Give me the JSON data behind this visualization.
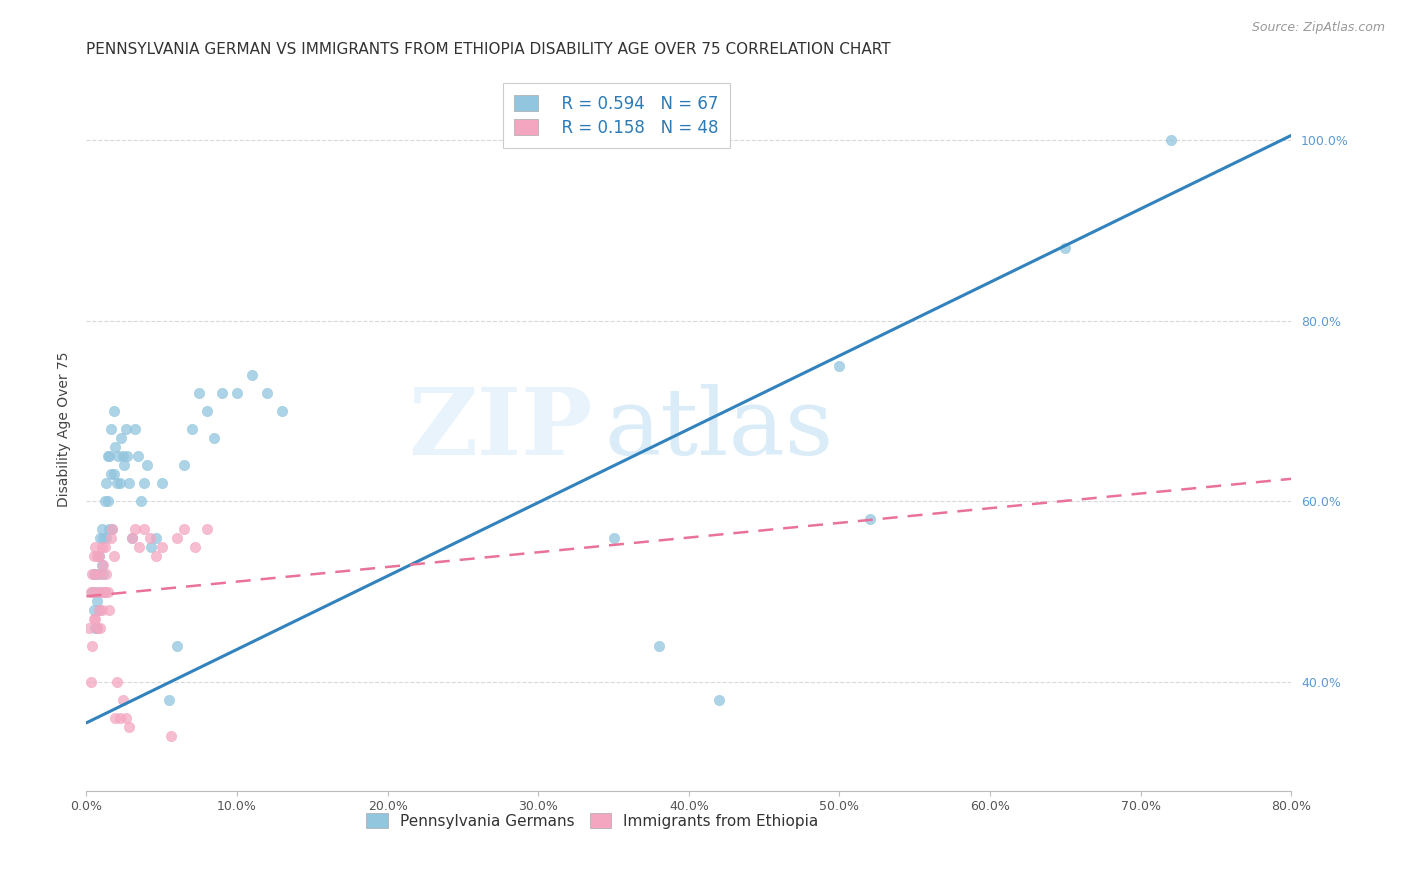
{
  "title": "PENNSYLVANIA GERMAN VS IMMIGRANTS FROM ETHIOPIA DISABILITY AGE OVER 75 CORRELATION CHART",
  "source": "Source: ZipAtlas.com",
  "ylabel": "Disability Age Over 75",
  "legend_label_1": "Pennsylvania Germans",
  "legend_label_2": "Immigrants from Ethiopia",
  "r1": 0.594,
  "n1": 67,
  "r2": 0.158,
  "n2": 48,
  "color1": "#92c5de",
  "color2": "#f4a6c0",
  "line1_color": "#3182bd",
  "line2_color": "#e8729a",
  "xmin": 0.0,
  "xmax": 0.8,
  "ymin": 0.28,
  "ymax": 1.08,
  "watermark_zip": "ZIP",
  "watermark_atlas": "atlas",
  "bg_color": "#ffffff",
  "grid_color": "#d0d0d0",
  "scatter1_x": [
    0.004,
    0.005,
    0.005,
    0.006,
    0.006,
    0.007,
    0.007,
    0.007,
    0.008,
    0.008,
    0.009,
    0.009,
    0.01,
    0.01,
    0.011,
    0.011,
    0.012,
    0.012,
    0.013,
    0.013,
    0.014,
    0.014,
    0.015,
    0.015,
    0.016,
    0.016,
    0.017,
    0.018,
    0.018,
    0.019,
    0.02,
    0.021,
    0.022,
    0.023,
    0.024,
    0.025,
    0.026,
    0.027,
    0.028,
    0.03,
    0.032,
    0.034,
    0.036,
    0.038,
    0.04,
    0.043,
    0.046,
    0.05,
    0.055,
    0.06,
    0.065,
    0.07,
    0.075,
    0.08,
    0.085,
    0.09,
    0.1,
    0.11,
    0.12,
    0.13,
    0.35,
    0.38,
    0.42,
    0.5,
    0.52,
    0.65,
    0.72
  ],
  "scatter1_y": [
    0.5,
    0.52,
    0.48,
    0.5,
    0.46,
    0.49,
    0.52,
    0.46,
    0.48,
    0.54,
    0.56,
    0.5,
    0.53,
    0.57,
    0.52,
    0.56,
    0.5,
    0.6,
    0.62,
    0.56,
    0.6,
    0.65,
    0.57,
    0.65,
    0.63,
    0.68,
    0.57,
    0.7,
    0.63,
    0.66,
    0.62,
    0.65,
    0.62,
    0.67,
    0.65,
    0.64,
    0.68,
    0.65,
    0.62,
    0.56,
    0.68,
    0.65,
    0.6,
    0.62,
    0.64,
    0.55,
    0.56,
    0.62,
    0.38,
    0.44,
    0.64,
    0.68,
    0.72,
    0.7,
    0.67,
    0.72,
    0.72,
    0.74,
    0.72,
    0.7,
    0.56,
    0.44,
    0.38,
    0.75,
    0.58,
    0.88,
    1.0
  ],
  "scatter2_x": [
    0.002,
    0.003,
    0.003,
    0.004,
    0.004,
    0.005,
    0.005,
    0.005,
    0.006,
    0.006,
    0.006,
    0.007,
    0.007,
    0.008,
    0.008,
    0.008,
    0.009,
    0.009,
    0.01,
    0.01,
    0.011,
    0.011,
    0.012,
    0.012,
    0.013,
    0.014,
    0.015,
    0.016,
    0.017,
    0.018,
    0.019,
    0.02,
    0.022,
    0.024,
    0.026,
    0.028,
    0.03,
    0.032,
    0.035,
    0.038,
    0.042,
    0.046,
    0.05,
    0.056,
    0.06,
    0.065,
    0.072,
    0.08
  ],
  "scatter2_y": [
    0.46,
    0.4,
    0.5,
    0.44,
    0.52,
    0.47,
    0.5,
    0.54,
    0.47,
    0.52,
    0.55,
    0.46,
    0.54,
    0.48,
    0.5,
    0.54,
    0.46,
    0.52,
    0.48,
    0.55,
    0.5,
    0.53,
    0.55,
    0.5,
    0.52,
    0.5,
    0.48,
    0.56,
    0.57,
    0.54,
    0.36,
    0.4,
    0.36,
    0.38,
    0.36,
    0.35,
    0.56,
    0.57,
    0.55,
    0.57,
    0.56,
    0.54,
    0.55,
    0.34,
    0.56,
    0.57,
    0.55,
    0.57
  ],
  "line1_x0": 0.0,
  "line1_y0": 0.355,
  "line1_x1": 0.8,
  "line1_y1": 1.005,
  "line2_x0": 0.0,
  "line2_y0": 0.495,
  "line2_x1": 0.8,
  "line2_y1": 0.625,
  "xtick_vals": [
    0.0,
    0.1,
    0.2,
    0.3,
    0.4,
    0.5,
    0.6,
    0.7,
    0.8
  ],
  "xtick_labels": [
    "0.0%",
    "10.0%",
    "20.0%",
    "30.0%",
    "40.0%",
    "50.0%",
    "60.0%",
    "70.0%",
    "80.0%"
  ],
  "ytick_vals": [
    0.4,
    0.6,
    0.8,
    1.0
  ],
  "ytick_labels": [
    "40.0%",
    "60.0%",
    "80.0%",
    "100.0%"
  ],
  "title_fontsize": 11,
  "axis_label_fontsize": 10,
  "tick_fontsize": 9,
  "source_fontsize": 9,
  "legend_fontsize": 12
}
